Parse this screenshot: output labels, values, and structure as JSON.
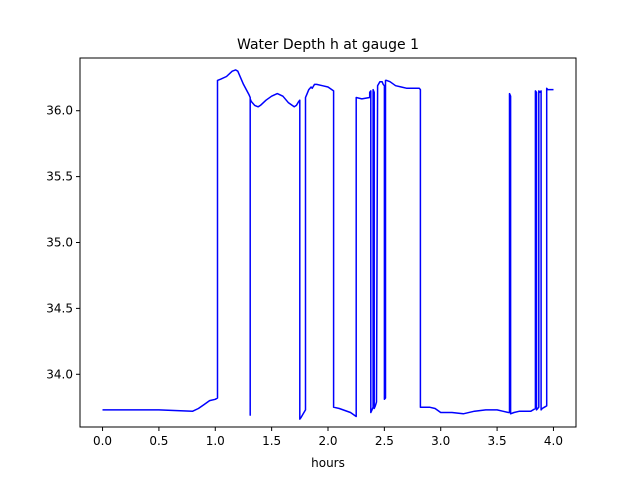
{
  "chart_data": {
    "type": "line",
    "title": "Water Depth h at gauge 1",
    "xlabel": "hours",
    "ylabel": "",
    "xlim": [
      -0.2,
      4.2
    ],
    "ylim": [
      33.6,
      36.4
    ],
    "xticks": [
      0.0,
      0.5,
      1.0,
      1.5,
      2.0,
      2.5,
      3.0,
      3.5,
      4.0
    ],
    "xtick_labels": [
      "0.0",
      "0.5",
      "1.0",
      "1.5",
      "2.0",
      "2.5",
      "3.0",
      "3.5",
      "4.0"
    ],
    "yticks": [
      34.0,
      34.5,
      35.0,
      35.5,
      36.0
    ],
    "ytick_labels": [
      "34.0",
      "34.5",
      "35.0",
      "35.5",
      "36.0"
    ],
    "grid": false,
    "series": [
      {
        "color": "#0000ff",
        "x": [
          0.0,
          0.5,
          0.8,
          0.85,
          0.9,
          0.95,
          1.0,
          1.02,
          1.02,
          1.05,
          1.1,
          1.15,
          1.18,
          1.2,
          1.25,
          1.3,
          1.31,
          1.31,
          1.31,
          1.32,
          1.35,
          1.38,
          1.4,
          1.45,
          1.5,
          1.55,
          1.6,
          1.65,
          1.7,
          1.72,
          1.74,
          1.75,
          1.75,
          1.76,
          1.78,
          1.8,
          1.8,
          1.81,
          1.83,
          1.85,
          1.86,
          1.88,
          1.9,
          1.95,
          2.0,
          2.05,
          2.05,
          2.1,
          2.2,
          2.25,
          2.25,
          2.3,
          2.37,
          2.37,
          2.38,
          2.38,
          2.39,
          2.4,
          2.4,
          2.41,
          2.41,
          2.42,
          2.43,
          2.44,
          2.46,
          2.48,
          2.49,
          2.5,
          2.5,
          2.51,
          2.51,
          2.52,
          2.55,
          2.6,
          2.65,
          2.7,
          2.75,
          2.8,
          2.81,
          2.82,
          2.82,
          2.9,
          2.95,
          3.0,
          3.1,
          3.2,
          3.3,
          3.4,
          3.5,
          3.55,
          3.6,
          3.61,
          3.61,
          3.62,
          3.62,
          3.65,
          3.7,
          3.8,
          3.84,
          3.84,
          3.85,
          3.85,
          3.86,
          3.87,
          3.87,
          3.88,
          3.89,
          3.89,
          3.9,
          3.92,
          3.94,
          3.94,
          3.95,
          3.97,
          4.0
        ],
        "y": [
          33.73,
          33.73,
          33.72,
          33.74,
          33.77,
          33.8,
          33.81,
          33.82,
          36.23,
          36.24,
          36.26,
          36.3,
          36.31,
          36.3,
          36.2,
          36.12,
          36.1,
          33.69,
          36.09,
          36.07,
          36.04,
          36.03,
          36.04,
          36.08,
          36.11,
          36.13,
          36.11,
          36.06,
          36.03,
          36.04,
          36.07,
          36.08,
          33.66,
          33.67,
          33.7,
          33.73,
          36.1,
          36.12,
          36.16,
          36.18,
          36.17,
          36.2,
          36.2,
          36.19,
          36.18,
          36.15,
          33.75,
          33.74,
          33.71,
          33.68,
          36.1,
          36.09,
          36.1,
          36.14,
          36.15,
          33.71,
          33.73,
          33.75,
          36.16,
          36.14,
          33.74,
          33.76,
          33.79,
          36.19,
          36.22,
          36.22,
          36.2,
          36.19,
          33.81,
          33.82,
          36.23,
          36.23,
          36.22,
          36.19,
          36.18,
          36.17,
          36.17,
          36.17,
          36.17,
          36.16,
          33.75,
          33.75,
          33.74,
          33.71,
          33.71,
          33.7,
          33.72,
          33.73,
          33.73,
          33.72,
          33.71,
          33.71,
          36.13,
          36.11,
          33.7,
          33.71,
          33.72,
          33.72,
          33.74,
          36.15,
          36.14,
          33.73,
          33.74,
          33.75,
          36.15,
          36.14,
          36.15,
          33.73,
          33.74,
          33.75,
          33.76,
          36.17,
          36.16,
          36.16,
          36.16
        ]
      }
    ]
  }
}
